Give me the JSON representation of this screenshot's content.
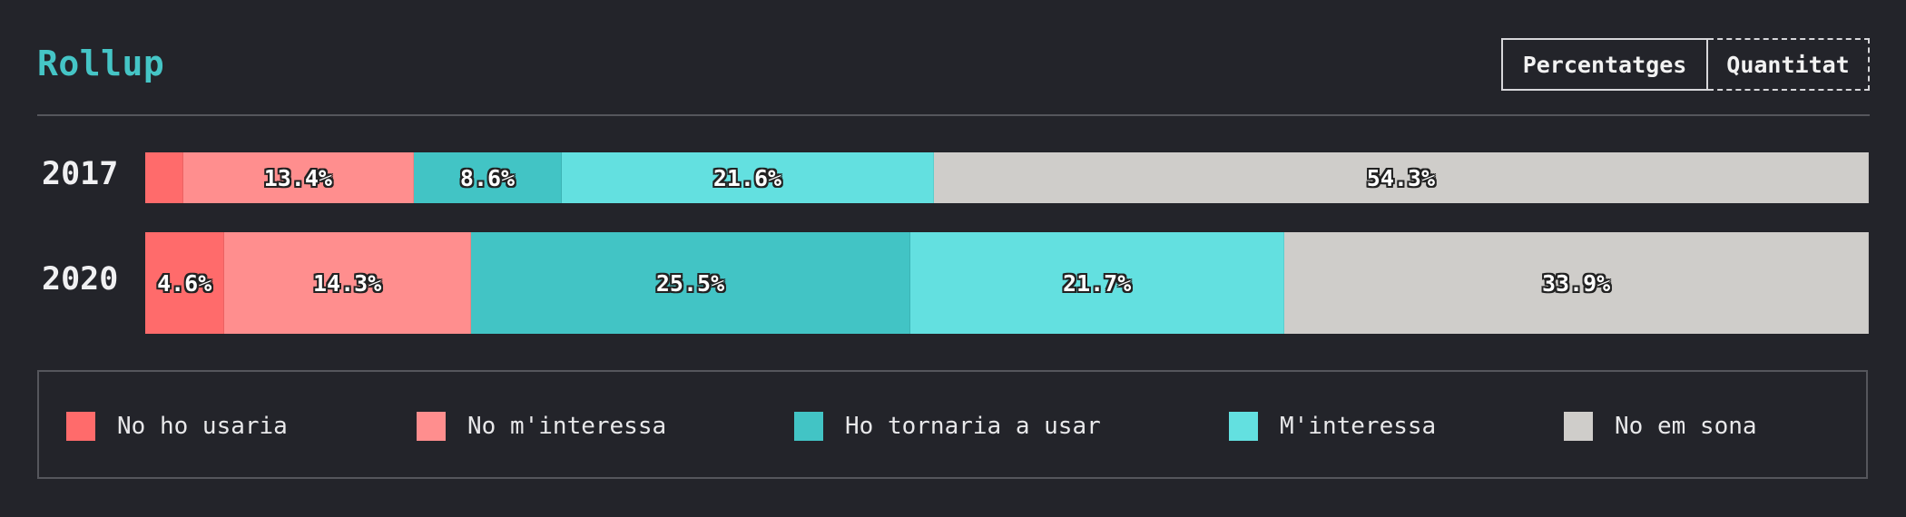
{
  "header": {
    "title": "Rollup"
  },
  "toggle": {
    "percent_label": "Percentatges",
    "count_label": "Quantitat",
    "selected": "percent"
  },
  "colors": {
    "no_ho_usaria": "#ff6b6b",
    "no_m_interessa": "#ff8e8e",
    "ho_tornaria": "#42c4c5",
    "m_interessa": "#63e0e0",
    "no_em_sona": "#cfcdca"
  },
  "chart_data": {
    "type": "bar",
    "orientation": "horizontal",
    "stacked": "percent",
    "categories": [
      "2017",
      "2020"
    ],
    "series": [
      {
        "name": "No ho usaria",
        "key": "no_ho_usaria",
        "values": [
          2.2,
          4.6
        ],
        "labels": [
          "",
          "4.6%"
        ]
      },
      {
        "name": "No m'interessa",
        "key": "no_m_interessa",
        "values": [
          13.4,
          14.3
        ],
        "labels": [
          "13.4%",
          "14.3%"
        ]
      },
      {
        "name": "Ho tornaria a usar",
        "key": "ho_tornaria",
        "values": [
          8.6,
          25.5
        ],
        "labels": [
          "8.6%",
          "25.5%"
        ]
      },
      {
        "name": "M'interessa",
        "key": "m_interessa",
        "values": [
          21.6,
          21.7
        ],
        "labels": [
          "21.6%",
          "21.7%"
        ]
      },
      {
        "name": "No em sona",
        "key": "no_em_sona",
        "values": [
          54.3,
          33.9
        ],
        "labels": [
          "54.3%",
          "33.9%"
        ]
      }
    ],
    "xlim": [
      0,
      100
    ],
    "legend_position": "bottom"
  },
  "legend": {
    "items": [
      {
        "label": "No ho usaria",
        "key": "no_ho_usaria"
      },
      {
        "label": "No m'interessa",
        "key": "no_m_interessa"
      },
      {
        "label": "Ho tornaria a usar",
        "key": "ho_tornaria"
      },
      {
        "label": "M'interessa",
        "key": "m_interessa"
      },
      {
        "label": "No em sona",
        "key": "no_em_sona"
      }
    ]
  }
}
